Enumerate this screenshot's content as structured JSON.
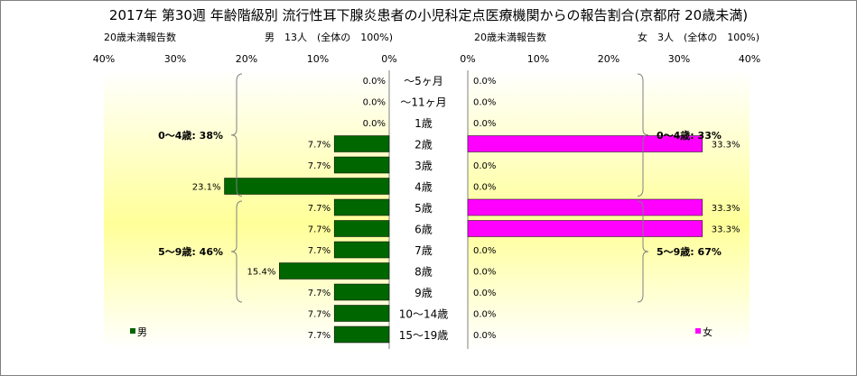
{
  "title": "2017年 第30週 年齢階級別 流行性耳下腺炎患者の小児科定点医療機関からの報告割合(京都府 20歳未満)",
  "chart_data": {
    "type": "bar",
    "categories": [
      "～5ヶ月",
      "～11ヶ月",
      "1歳",
      "2歳",
      "3歳",
      "4歳",
      "5歳",
      "6歳",
      "7歳",
      "8歳",
      "9歳",
      "10～14歳",
      "15～19歳"
    ],
    "colors": {
      "male": "#006600",
      "female": "#FF00FF",
      "plot_bg_top": "#FFFFFF",
      "plot_bg_bottom": "#FFFF99",
      "bracket": "#808080"
    },
    "male": {
      "subtitle_left": "20歳未満報告数",
      "subtitle_right": "男　13人　(全体の　100%)",
      "legend": "男",
      "values": [
        0.0,
        0.0,
        0.0,
        7.7,
        7.7,
        23.1,
        7.7,
        7.7,
        7.7,
        15.4,
        7.7,
        7.7,
        7.7
      ],
      "labels": [
        "0.0%",
        "0.0%",
        "0.0%",
        "7.7%",
        "7.7%",
        "23.1%",
        "7.7%",
        "7.7%",
        "7.7%",
        "15.4%",
        "7.7%",
        "7.7%",
        "7.7%"
      ],
      "xticks": [
        "40%",
        "30%",
        "20%",
        "10%",
        "0%"
      ],
      "xlim": [
        0,
        40
      ],
      "groups": [
        {
          "label": "0～4歳: 38%",
          "from": 0,
          "to": 5
        },
        {
          "label": "5～9歳: 46%",
          "from": 6,
          "to": 10
        }
      ]
    },
    "female": {
      "subtitle_left": "20歳未満報告数",
      "subtitle_right": "女　3人　(全体の　100%)",
      "legend": "女",
      "values": [
        0.0,
        0.0,
        0.0,
        33.3,
        0.0,
        0.0,
        33.3,
        33.3,
        0.0,
        0.0,
        0.0,
        0.0,
        0.0
      ],
      "labels": [
        "0.0%",
        "0.0%",
        "0.0%",
        "33.3%",
        "0.0%",
        "0.0%",
        "33.3%",
        "33.3%",
        "0.0%",
        "0.0%",
        "0.0%",
        "0.0%",
        "0.0%"
      ],
      "xticks": [
        "0%",
        "10%",
        "20%",
        "30%",
        "40%"
      ],
      "xlim": [
        0,
        40
      ],
      "groups": [
        {
          "label": "0～4歳: 33%",
          "from": 0,
          "to": 5
        },
        {
          "label": "5～9歳: 67%",
          "from": 6,
          "to": 10
        }
      ]
    }
  }
}
